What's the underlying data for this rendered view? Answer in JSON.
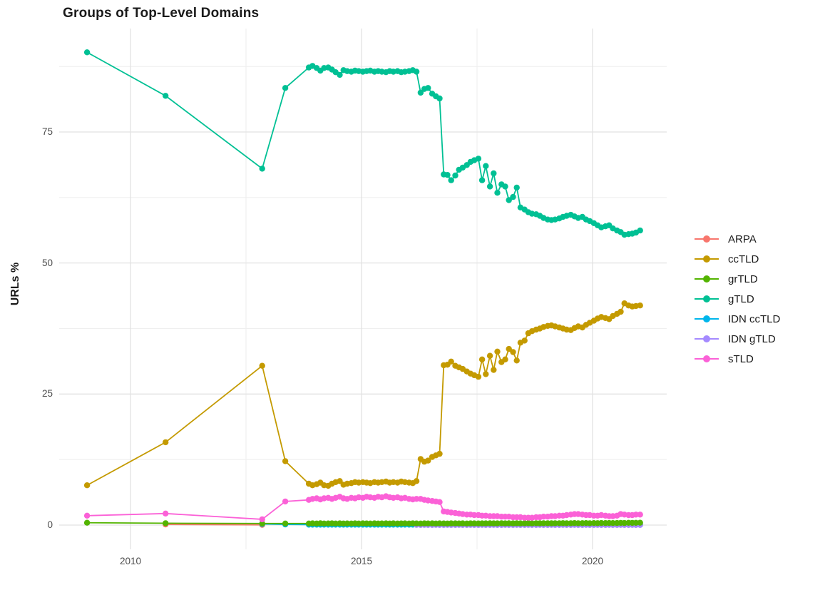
{
  "chart_data": {
    "type": "line",
    "title": "Groups of Top-Level Domains",
    "xlabel": "",
    "ylabel": "URLs %",
    "x_ticks": [
      2010,
      2015,
      2020
    ],
    "y_ticks": [
      0,
      25,
      50,
      75
    ],
    "x_minor_gridlines": [
      2012.5,
      2017.5
    ],
    "y_minor_gridlines": [
      12.5,
      37.5,
      62.5,
      87.5
    ],
    "xlim": [
      2008.45,
      2021.65
    ],
    "ylim": [
      -4.6,
      94.8
    ],
    "grid": true,
    "legend_position": "right",
    "x_monthly": [
      2013.86,
      2013.94,
      2014.03,
      2014.11,
      2014.19,
      2014.28,
      2014.36,
      2014.44,
      2014.53,
      2014.61,
      2014.69,
      2014.78,
      2014.86,
      2014.94,
      2015.03,
      2015.11,
      2015.19,
      2015.28,
      2015.36,
      2015.44,
      2015.53,
      2015.61,
      2015.69,
      2015.78,
      2015.86,
      2015.94,
      2016.03,
      2016.11,
      2016.19,
      2016.28,
      2016.36,
      2016.44,
      2016.53,
      2016.61,
      2016.69,
      2016.78,
      2016.86,
      2016.94,
      2017.03,
      2017.11,
      2017.19,
      2017.28,
      2017.36,
      2017.44,
      2017.53,
      2017.61,
      2017.69,
      2017.78,
      2017.86,
      2017.94,
      2018.03,
      2018.11,
      2018.19,
      2018.28,
      2018.36,
      2018.44,
      2018.53,
      2018.61,
      2018.69,
      2018.78,
      2018.86,
      2018.94,
      2019.03,
      2019.11,
      2019.19,
      2019.28,
      2019.36,
      2019.44,
      2019.53,
      2019.61,
      2019.69,
      2019.78,
      2019.86,
      2019.94,
      2020.03,
      2020.11,
      2020.19,
      2020.28,
      2020.36,
      2020.44,
      2020.53,
      2020.61,
      2020.69,
      2020.78,
      2020.86,
      2020.94,
      2021.03
    ],
    "series": [
      {
        "name": "ARPA",
        "color": "#F8766D",
        "sparse": [
          [
            2010.76,
            0.12
          ],
          [
            2012.85,
            0.04
          ]
        ],
        "monthly": null
      },
      {
        "name": "ccTLD",
        "color": "#C49A00",
        "sparse": [
          [
            2009.06,
            7.6
          ],
          [
            2010.76,
            15.8
          ],
          [
            2012.85,
            30.4
          ],
          [
            2013.35,
            12.2
          ]
        ],
        "monthly": [
          7.9,
          7.6,
          7.8,
          8.1,
          7.6,
          7.5,
          7.9,
          8.2,
          8.4,
          7.7,
          7.9,
          8.0,
          8.2,
          8.1,
          8.2,
          8.1,
          8.0,
          8.2,
          8.1,
          8.2,
          8.3,
          8.1,
          8.2,
          8.1,
          8.3,
          8.2,
          8.1,
          8.0,
          8.4,
          12.6,
          12.1,
          12.3,
          13.0,
          13.3,
          13.6,
          30.5,
          30.6,
          31.2,
          30.4,
          30.1,
          29.8,
          29.3,
          28.9,
          28.6,
          28.3,
          31.6,
          28.8,
          32.3,
          29.6,
          33.1,
          31.1,
          31.6,
          33.6,
          33.0,
          31.4,
          34.8,
          35.2,
          36.6,
          37.0,
          37.3,
          37.5,
          37.8,
          38.0,
          38.1,
          37.9,
          37.7,
          37.5,
          37.3,
          37.2,
          37.6,
          37.9,
          37.7,
          38.2,
          38.6,
          39.0,
          39.4,
          39.7,
          39.5,
          39.3,
          39.9,
          40.3,
          40.7,
          42.3,
          41.9,
          41.7,
          41.8,
          41.9
        ]
      },
      {
        "name": "grTLD",
        "color": "#53B400",
        "sparse": [
          [
            2009.06,
            0.45
          ],
          [
            2010.76,
            0.35
          ],
          [
            2012.85,
            0.3
          ],
          [
            2013.35,
            0.3
          ]
        ],
        "monthly": [
          0.3,
          0.32,
          0.3,
          0.34,
          0.3,
          0.31,
          0.33,
          0.3,
          0.32,
          0.3,
          0.31,
          0.3,
          0.33,
          0.3,
          0.32,
          0.31,
          0.3,
          0.32,
          0.3,
          0.31,
          0.33,
          0.3,
          0.32,
          0.3,
          0.31,
          0.32,
          0.3,
          0.33,
          0.31,
          0.3,
          0.32,
          0.31,
          0.33,
          0.3,
          0.32,
          0.31,
          0.3,
          0.32,
          0.33,
          0.31,
          0.32,
          0.3,
          0.33,
          0.32,
          0.31,
          0.33,
          0.32,
          0.34,
          0.32,
          0.33,
          0.35,
          0.33,
          0.34,
          0.32,
          0.35,
          0.33,
          0.34,
          0.35,
          0.33,
          0.36,
          0.34,
          0.35,
          0.36,
          0.34,
          0.36,
          0.35,
          0.37,
          0.35,
          0.36,
          0.38,
          0.36,
          0.37,
          0.38,
          0.36,
          0.38,
          0.37,
          0.39,
          0.38,
          0.4,
          0.38,
          0.4,
          0.42,
          0.4,
          0.43,
          0.42,
          0.44,
          0.45
        ]
      },
      {
        "name": "gTLD",
        "color": "#00C094",
        "sparse": [
          [
            2009.06,
            90.2
          ],
          [
            2010.76,
            81.9
          ],
          [
            2012.85,
            68.0
          ],
          [
            2013.35,
            83.4
          ]
        ],
        "monthly": [
          87.3,
          87.6,
          87.2,
          86.7,
          87.2,
          87.3,
          86.9,
          86.4,
          85.9,
          86.8,
          86.6,
          86.5,
          86.7,
          86.6,
          86.5,
          86.6,
          86.7,
          86.5,
          86.6,
          86.5,
          86.4,
          86.6,
          86.5,
          86.6,
          86.4,
          86.5,
          86.6,
          86.8,
          86.5,
          82.5,
          83.2,
          83.4,
          82.3,
          81.8,
          81.4,
          66.9,
          66.8,
          65.8,
          66.7,
          67.8,
          68.2,
          68.7,
          69.3,
          69.6,
          69.9,
          65.8,
          68.5,
          64.6,
          67.1,
          63.4,
          65.0,
          64.6,
          62.0,
          62.6,
          64.4,
          60.6,
          60.2,
          59.7,
          59.4,
          59.3,
          59.0,
          58.6,
          58.3,
          58.2,
          58.3,
          58.5,
          58.8,
          59.0,
          59.2,
          58.9,
          58.6,
          58.8,
          58.3,
          58.0,
          57.6,
          57.2,
          56.8,
          57.0,
          57.2,
          56.6,
          56.2,
          55.9,
          55.4,
          55.5,
          55.6,
          55.8,
          56.2
        ]
      },
      {
        "name": "IDN ccTLD",
        "color": "#00B6EB",
        "sparse": [
          [
            2012.85,
            0.2
          ],
          [
            2013.35,
            0.12
          ]
        ],
        "monthly": [
          0.08,
          0.08,
          0.08,
          0.08,
          0.08,
          0.08,
          0.08,
          0.08,
          0.08,
          0.08,
          0.08,
          0.08,
          0.08,
          0.08,
          0.08,
          0.08,
          0.08,
          0.08,
          0.08,
          0.08,
          0.08,
          0.08,
          0.08,
          0.08,
          0.08,
          0.08,
          0.08,
          0.08,
          0.08,
          0.08,
          0.08,
          0.08,
          0.08,
          0.08,
          0.08,
          0.08,
          0.08,
          0.08,
          0.08,
          0.08,
          0.08,
          0.08,
          0.08,
          0.08,
          0.08,
          0.08,
          0.08,
          0.08,
          0.08,
          0.08,
          0.08,
          0.08,
          0.08,
          0.08,
          0.08,
          0.08,
          0.08,
          0.08,
          0.08,
          0.08,
          0.08,
          0.08,
          0.08,
          0.08,
          0.08,
          0.08,
          0.08,
          0.08,
          0.08,
          0.08,
          0.08,
          0.08,
          0.08,
          0.08,
          0.08,
          0.08,
          0.08,
          0.08,
          0.08,
          0.08,
          0.08,
          0.08,
          0.08,
          0.08,
          0.08,
          0.08,
          0.08
        ]
      },
      {
        "name": "IDN gTLD",
        "color": "#A58AFF",
        "sparse": [],
        "monthly": [
          null,
          null,
          null,
          null,
          null,
          null,
          null,
          null,
          null,
          null,
          null,
          null,
          null,
          null,
          null,
          null,
          null,
          null,
          null,
          null,
          null,
          null,
          null,
          null,
          null,
          null,
          null,
          null,
          0.04,
          0.03,
          0.04,
          0.03,
          0.03,
          0.04,
          0.03,
          0.03,
          0.04,
          0.03,
          0.03,
          0.04,
          0.03,
          0.03,
          0.04,
          0.03,
          0.03,
          0.04,
          0.03,
          0.03,
          0.04,
          0.03,
          0.03,
          0.04,
          0.03,
          0.03,
          0.04,
          0.03,
          0.03,
          0.04,
          0.03,
          0.03,
          0.04,
          0.03,
          0.03,
          0.04,
          0.03,
          0.03,
          0.04,
          0.03,
          0.03,
          0.04,
          0.03,
          0.03,
          0.04,
          0.03,
          0.03,
          0.04,
          0.03,
          0.03,
          0.04,
          0.03,
          0.03,
          0.04,
          0.03,
          0.03,
          0.04,
          0.03,
          0.03
        ]
      },
      {
        "name": "sTLD",
        "color": "#FB61D7",
        "sparse": [
          [
            2009.06,
            1.8
          ],
          [
            2010.76,
            2.2
          ],
          [
            2012.85,
            1.1
          ],
          [
            2013.35,
            4.5
          ]
        ],
        "monthly": [
          4.8,
          5.0,
          5.1,
          4.9,
          5.1,
          5.2,
          5.0,
          5.2,
          5.4,
          5.1,
          5.0,
          5.2,
          5.1,
          5.3,
          5.2,
          5.4,
          5.3,
          5.2,
          5.4,
          5.3,
          5.5,
          5.3,
          5.2,
          5.3,
          5.1,
          5.2,
          5.0,
          4.9,
          5.0,
          5.0,
          4.8,
          4.7,
          4.6,
          4.5,
          4.4,
          2.6,
          2.5,
          2.4,
          2.3,
          2.2,
          2.1,
          2.0,
          2.0,
          1.9,
          1.9,
          1.8,
          1.8,
          1.7,
          1.7,
          1.7,
          1.6,
          1.6,
          1.6,
          1.5,
          1.5,
          1.5,
          1.4,
          1.4,
          1.4,
          1.5,
          1.5,
          1.6,
          1.6,
          1.7,
          1.7,
          1.8,
          1.8,
          1.9,
          2.0,
          2.1,
          2.1,
          2.0,
          1.9,
          1.9,
          1.8,
          1.8,
          1.9,
          1.8,
          1.7,
          1.7,
          1.8,
          2.1,
          2.0,
          1.9,
          1.9,
          2.0,
          2.0
        ]
      }
    ]
  },
  "style": {
    "grid_major_color": "#e2e2e2",
    "grid_minor_color": "#efefef",
    "axis_text_color": "#4d4d4d",
    "background_color": "#ffffff"
  }
}
